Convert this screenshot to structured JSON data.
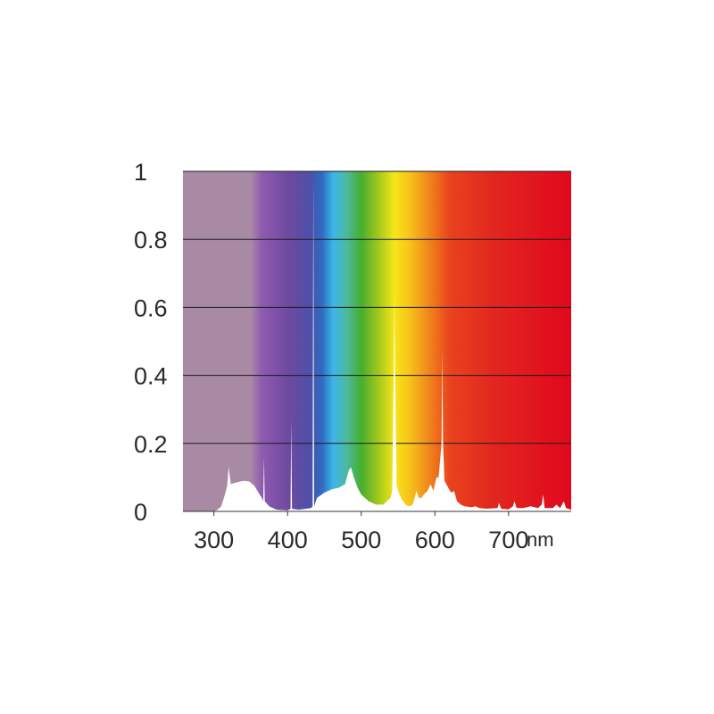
{
  "chart_data": {
    "type": "area",
    "title": "",
    "xlabel": "",
    "ylabel": "",
    "x_unit": "nm",
    "xlim": [
      258,
      785
    ],
    "ylim": [
      0,
      1
    ],
    "x_ticks": [
      {
        "value": 300,
        "label": "300"
      },
      {
        "value": 400,
        "label": "400"
      },
      {
        "value": 500,
        "label": "500"
      },
      {
        "value": 600,
        "label": "600"
      },
      {
        "value": 700,
        "label": "700"
      }
    ],
    "y_ticks": [
      {
        "value": 0,
        "label": "0"
      },
      {
        "value": 0.2,
        "label": "0.2"
      },
      {
        "value": 0.4,
        "label": "0.4"
      },
      {
        "value": 0.6,
        "label": "0.6"
      },
      {
        "value": 0.8,
        "label": "0.8"
      },
      {
        "value": 1,
        "label": "1"
      }
    ],
    "grid": true,
    "legend": "none",
    "series_color": "#ffffff",
    "background_colors": [
      {
        "at": 258,
        "color": "#a98aa5"
      },
      {
        "at": 350,
        "color": "#a98aa5"
      },
      {
        "at": 365,
        "color": "#8f5bb0"
      },
      {
        "at": 400,
        "color": "#6e4aa0"
      },
      {
        "at": 430,
        "color": "#4f4fa8"
      },
      {
        "at": 447,
        "color": "#2f6cc0"
      },
      {
        "at": 462,
        "color": "#3cb6ea"
      },
      {
        "at": 480,
        "color": "#4cb9a0"
      },
      {
        "at": 500,
        "color": "#46ae2f"
      },
      {
        "at": 525,
        "color": "#a9ca1c"
      },
      {
        "at": 545,
        "color": "#f6e51a"
      },
      {
        "at": 565,
        "color": "#f7c41a"
      },
      {
        "at": 590,
        "color": "#f18a1c"
      },
      {
        "at": 620,
        "color": "#e9431e"
      },
      {
        "at": 680,
        "color": "#e2261e"
      },
      {
        "at": 785,
        "color": "#e0081d"
      }
    ],
    "series": [
      {
        "values": [
          [
            300,
            0
          ],
          [
            305,
            0.005
          ],
          [
            310,
            0.015
          ],
          [
            315,
            0.05
          ],
          [
            318,
            0.075
          ],
          [
            320,
            0.13
          ],
          [
            323,
            0.08
          ],
          [
            330,
            0.085
          ],
          [
            340,
            0.09
          ],
          [
            348,
            0.088
          ],
          [
            355,
            0.075
          ],
          [
            362,
            0.05
          ],
          [
            365,
            0.04
          ],
          [
            367,
            0.03
          ],
          [
            368,
            0.16
          ],
          [
            369,
            0.03
          ],
          [
            375,
            0.015
          ],
          [
            385,
            0.005
          ],
          [
            400,
            0.003
          ],
          [
            404,
            0.008
          ],
          [
            405,
            0.27
          ],
          [
            406,
            0.008
          ],
          [
            415,
            0.005
          ],
          [
            425,
            0.008
          ],
          [
            432,
            0.01
          ],
          [
            434,
            0.015
          ],
          [
            435,
            0.98
          ],
          [
            436,
            0.015
          ],
          [
            440,
            0.04
          ],
          [
            450,
            0.055
          ],
          [
            460,
            0.065
          ],
          [
            470,
            0.07
          ],
          [
            478,
            0.08
          ],
          [
            483,
            0.12
          ],
          [
            486,
            0.13
          ],
          [
            490,
            0.1
          ],
          [
            495,
            0.07
          ],
          [
            500,
            0.05
          ],
          [
            510,
            0.03
          ],
          [
            520,
            0.02
          ],
          [
            530,
            0.02
          ],
          [
            540,
            0.04
          ],
          [
            542,
            0.06
          ],
          [
            544,
            0.4
          ],
          [
            545,
            0.63
          ],
          [
            546,
            0.4
          ],
          [
            548,
            0.08
          ],
          [
            550,
            0.06
          ],
          [
            555,
            0.035
          ],
          [
            560,
            0.02
          ],
          [
            565,
            0.015
          ],
          [
            570,
            0.02
          ],
          [
            575,
            0.06
          ],
          [
            578,
            0.04
          ],
          [
            582,
            0.04
          ],
          [
            585,
            0.05
          ],
          [
            590,
            0.06
          ],
          [
            594,
            0.08
          ],
          [
            598,
            0.06
          ],
          [
            602,
            0.1
          ],
          [
            605,
            0.1
          ],
          [
            609,
            0.2
          ],
          [
            610,
            0.48
          ],
          [
            611,
            0.2
          ],
          [
            613,
            0.09
          ],
          [
            618,
            0.07
          ],
          [
            622,
            0.055
          ],
          [
            626,
            0.06
          ],
          [
            630,
            0.03
          ],
          [
            635,
            0.02
          ],
          [
            640,
            0.015
          ],
          [
            650,
            0.012
          ],
          [
            655,
            0.015
          ],
          [
            660,
            0.01
          ],
          [
            670,
            0.008
          ],
          [
            685,
            0.01
          ],
          [
            687,
            0.025
          ],
          [
            690,
            0.008
          ],
          [
            700,
            0.006
          ],
          [
            706,
            0.015
          ],
          [
            708,
            0.03
          ],
          [
            711,
            0.01
          ],
          [
            720,
            0.01
          ],
          [
            730,
            0.015
          ],
          [
            740,
            0.01
          ],
          [
            745,
            0.02
          ],
          [
            747,
            0.05
          ],
          [
            749,
            0.01
          ],
          [
            760,
            0.01
          ],
          [
            765,
            0.02
          ],
          [
            770,
            0.01
          ],
          [
            775,
            0.03
          ],
          [
            778,
            0.01
          ],
          [
            785,
            0.005
          ]
        ]
      }
    ]
  }
}
